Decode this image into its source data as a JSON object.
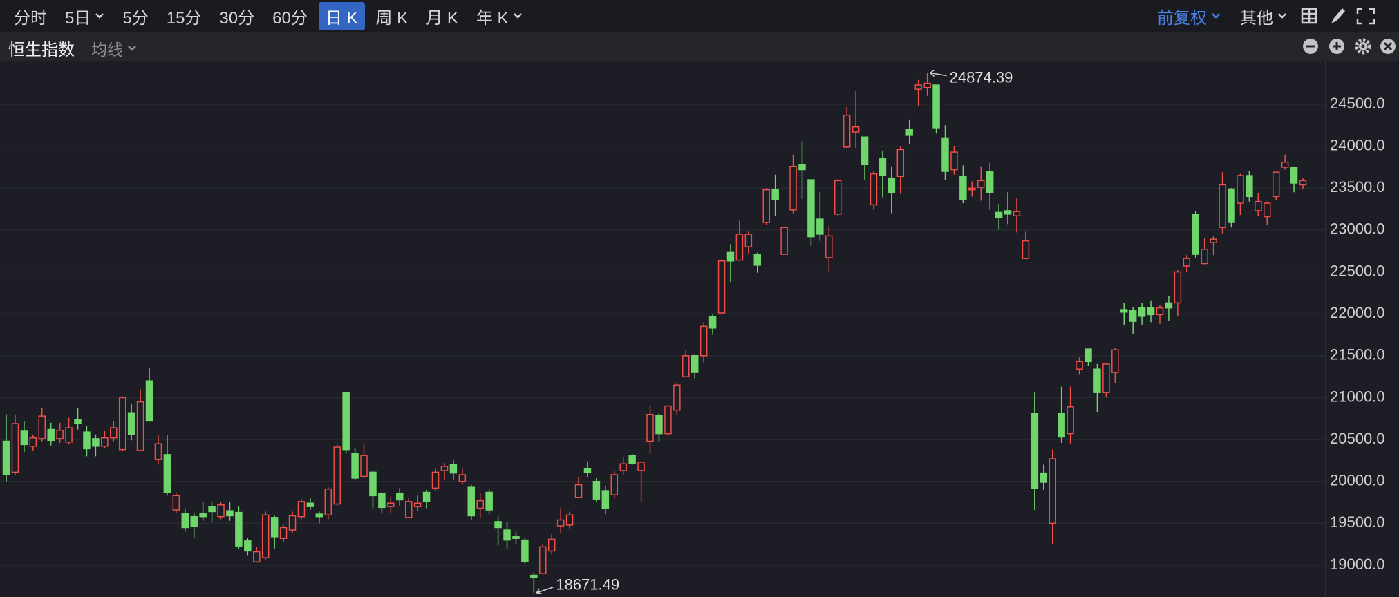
{
  "toolbar": {
    "tabs": [
      {
        "label": "分时"
      },
      {
        "label": "5日",
        "dropdown": true
      },
      {
        "label": "5分"
      },
      {
        "label": "15分"
      },
      {
        "label": "30分"
      },
      {
        "label": "60分"
      },
      {
        "label": "日 K",
        "active": true
      },
      {
        "label": "周 K"
      },
      {
        "label": "月 K"
      },
      {
        "label": "年 K",
        "dropdown": true
      }
    ],
    "right": [
      {
        "label": "前复权",
        "dropdown": true,
        "highlight": true
      },
      {
        "label": "其他",
        "dropdown": true
      }
    ]
  },
  "subbar": {
    "title": "恒生指数",
    "indicator": {
      "label": "均线",
      "dropdown": true
    }
  },
  "chart_data": {
    "type": "candlestick",
    "open": [
      20480,
      20110,
      20600,
      20420,
      20510,
      20620,
      20510,
      20470,
      20740,
      20590,
      20510,
      20420,
      20520,
      20380,
      20820,
      20370,
      21200,
      20260,
      20320,
      19660,
      19620,
      19580,
      19620,
      19700,
      19580,
      19650,
      19630,
      19290,
      19040,
      19090,
      19570,
      19320,
      19420,
      19580,
      19740,
      19610,
      19600,
      19730,
      21060,
      20330,
      20060,
      20110,
      19860,
      19700,
      19860,
      19570,
      19700,
      19870,
      19920,
      20130,
      20200,
      20000,
      19930,
      19680,
      19870,
      19520,
      19420,
      19340,
      19300,
      18880,
      18900,
      19170,
      19470,
      19480,
      19810,
      20150,
      20000,
      19890,
      19840,
      20130,
      20310,
      20130,
      20480,
      20790,
      20570,
      20850,
      21250,
      21500,
      21500,
      21970,
      22010,
      22740,
      22640,
      22800,
      22710,
      23090,
      23480,
      22710,
      23240,
      23780,
      23600,
      23130,
      22670,
      23190,
      23990,
      24170,
      24110,
      23300,
      23850,
      23620,
      23640,
      24200,
      24680,
      24700,
      24730,
      24100,
      23720,
      23640,
      23480,
      23510,
      23700,
      23210,
      23230,
      23170,
      22660,
      20810,
      20100,
      19500,
      20810,
      20570,
      21340,
      21580,
      21340,
      21060,
      21300,
      22050,
      22040,
      22070,
      22070,
      21990,
      22130,
      22130,
      22570,
      23190,
      22600,
      22850,
      23030,
      23490,
      23320,
      23650,
      23230,
      23160,
      23400,
      23750,
      23750,
      23540
    ],
    "high": [
      20800,
      20800,
      20720,
      20560,
      20880,
      20700,
      20700,
      20760,
      20880,
      20660,
      20560,
      20600,
      20720,
      21010,
      20920,
      21100,
      21350,
      20550,
      20550,
      19860,
      19680,
      19620,
      19750,
      19760,
      19750,
      19760,
      19700,
      19330,
      19220,
      19640,
      19590,
      19480,
      19640,
      19790,
      19800,
      19640,
      19930,
      20450,
      21060,
      20400,
      20440,
      20120,
      19870,
      19820,
      19920,
      19800,
      19830,
      19900,
      20150,
      20220,
      20250,
      20150,
      19960,
      19860,
      19900,
      19580,
      19520,
      19400,
      19320,
      18910,
      19250,
      19370,
      19680,
      19640,
      20050,
      20240,
      20040,
      19950,
      20120,
      20290,
      20330,
      20240,
      20910,
      20820,
      20910,
      21180,
      21570,
      21520,
      21900,
      22000,
      22650,
      22830,
      23110,
      22980,
      22730,
      23500,
      23660,
      23030,
      23900,
      24060,
      23600,
      23450,
      23050,
      23590,
      24470,
      24660,
      24110,
      23710,
      23940,
      23760,
      24000,
      24320,
      24790,
      24874.39,
      24730,
      24250,
      24000,
      23770,
      23580,
      23760,
      23800,
      23310,
      23450,
      23380,
      22980,
      21060,
      20200,
      20380,
      21130,
      21130,
      21480,
      21580,
      21400,
      21410,
      21590,
      22130,
      22080,
      22130,
      22160,
      22100,
      22210,
      22520,
      22700,
      23230,
      22900,
      22930,
      23690,
      23500,
      23670,
      23700,
      23440,
      23340,
      23690,
      23900,
      23760,
      23620
    ],
    "low": [
      20000,
      20080,
      20350,
      20370,
      20480,
      20430,
      20460,
      20440,
      20620,
      20300,
      20300,
      20400,
      20480,
      20360,
      20490,
      20370,
      20720,
      20200,
      19830,
      19620,
      19400,
      19320,
      19530,
      19520,
      19550,
      19530,
      19200,
      19120,
      19030,
      19070,
      19200,
      19280,
      19380,
      19550,
      19660,
      19500,
      19550,
      19700,
      20330,
      20020,
      20040,
      19680,
      19620,
      19620,
      19710,
      19560,
      19650,
      19680,
      19890,
      20020,
      20020,
      19960,
      19540,
      19560,
      19610,
      19240,
      19200,
      19250,
      19020,
      18671.49,
      18890,
      19130,
      19380,
      19440,
      19800,
      20050,
      19760,
      19610,
      19810,
      20080,
      20200,
      19760,
      20330,
      20470,
      20540,
      20800,
      21240,
      21230,
      21410,
      21750,
      22000,
      22380,
      22630,
      22720,
      22490,
      23060,
      23170,
      22710,
      23200,
      23370,
      22810,
      22870,
      22510,
      23170,
      23980,
      23980,
      23600,
      23240,
      23390,
      23200,
      23430,
      24030,
      24480,
      24600,
      24150,
      23600,
      23660,
      23320,
      23400,
      23350,
      23240,
      23000,
      23070,
      22970,
      22650,
      19660,
      19900,
      19250,
      20460,
      20450,
      21280,
      21380,
      20830,
      21010,
      21170,
      21870,
      21760,
      21870,
      21900,
      21880,
      21920,
      21970,
      22500,
      22670,
      22580,
      22700,
      22960,
      23030,
      23180,
      23340,
      23170,
      23060,
      23360,
      23720,
      23450,
      23490
    ],
    "close": [
      20080,
      20690,
      20440,
      20520,
      20780,
      20490,
      20610,
      20640,
      20690,
      20390,
      20420,
      20520,
      20640,
      21000,
      20560,
      20950,
      20720,
      20450,
      19870,
      19830,
      19450,
      19460,
      19580,
      19640,
      19720,
      19590,
      19230,
      19170,
      19160,
      19600,
      19340,
      19450,
      19590,
      19760,
      19700,
      19580,
      19910,
      20410,
      20380,
      20040,
      20310,
      19830,
      19690,
      19740,
      19780,
      19760,
      19740,
      19760,
      20110,
      20180,
      20100,
      20080,
      19590,
      19770,
      19660,
      19450,
      19300,
      19320,
      19040,
      18850,
      19220,
      19310,
      19540,
      19600,
      19960,
      20110,
      19790,
      19680,
      20080,
      20210,
      20210,
      20230,
      20800,
      20570,
      20900,
      21150,
      21500,
      21300,
      21850,
      21830,
      22630,
      22630,
      22950,
      22950,
      22580,
      23480,
      23360,
      23030,
      23760,
      23720,
      22920,
      22950,
      22930,
      23590,
      24370,
      24230,
      23780,
      23670,
      23650,
      23450,
      23960,
      24130,
      24730,
      24750,
      24220,
      23700,
      23930,
      23360,
      23500,
      23590,
      23450,
      23150,
      23190,
      23220,
      22870,
      19920,
      19990,
      20270,
      20530,
      20890,
      21430,
      21430,
      21060,
      21400,
      21570,
      22020,
      21910,
      21970,
      21990,
      22070,
      22070,
      22500,
      22660,
      22710,
      22770,
      22890,
      23540,
      23090,
      23650,
      23400,
      23340,
      23320,
      23690,
      23810,
      23560,
      23590
    ],
    "up_color": "#ef4e49",
    "down_color": "#6fd66b",
    "ylim": [
      18621,
      25019
    ],
    "yticks": [
      {
        "value": 19000,
        "label": "19000.0"
      },
      {
        "value": 19500,
        "label": "19500.0"
      },
      {
        "value": 20000,
        "label": "20000.0"
      },
      {
        "value": 20500,
        "label": "20500.0"
      },
      {
        "value": 21000,
        "label": "21000.0"
      },
      {
        "value": 21500,
        "label": "21500.0"
      },
      {
        "value": 22000,
        "label": "22000.0"
      },
      {
        "value": 22500,
        "label": "22500.0"
      },
      {
        "value": 23000,
        "label": "23000.0"
      },
      {
        "value": 23500,
        "label": "23500.0"
      },
      {
        "value": 24000,
        "label": "24000.0"
      },
      {
        "value": 24500,
        "label": "24500.0"
      }
    ],
    "grid": true,
    "high_label": "24874.39",
    "low_label": "18671.49"
  }
}
